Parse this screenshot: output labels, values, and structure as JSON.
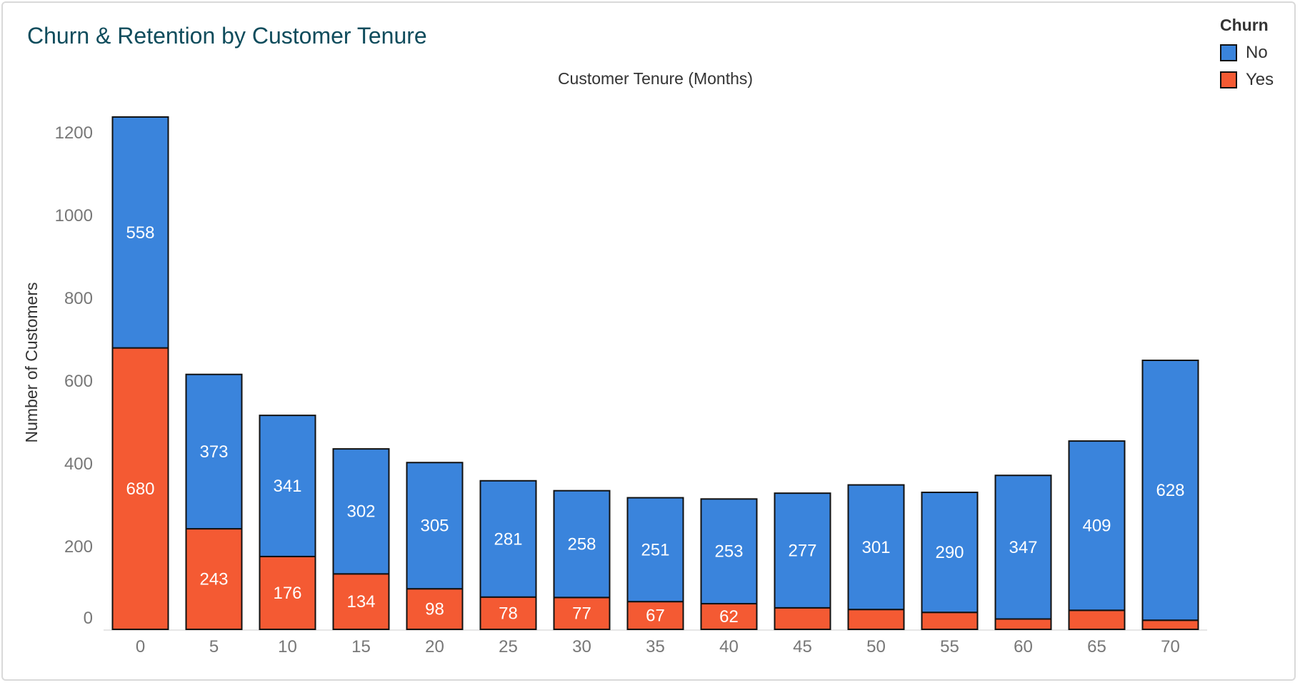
{
  "header": {
    "title": "Churn & Retention by Customer Tenure"
  },
  "legend": {
    "title": "Churn",
    "items": [
      {
        "label": "No",
        "color": "#3a84dc"
      },
      {
        "label": "Yes",
        "color": "#f45a33"
      }
    ]
  },
  "chart_data": {
    "type": "bar",
    "stacked": true,
    "title": "Churn & Retention by Customer Tenure",
    "xlabel": "Customer Tenure (Months)",
    "ylabel": "Number of Customers",
    "categories": [
      "0",
      "5",
      "10",
      "15",
      "20",
      "25",
      "30",
      "35",
      "40",
      "45",
      "50",
      "55",
      "60",
      "65",
      "70"
    ],
    "series": [
      {
        "name": "Yes",
        "color": "#f45a33",
        "values": [
          680,
          243,
          176,
          134,
          98,
          78,
          77,
          67,
          62,
          52,
          48,
          41,
          25,
          46,
          22
        ],
        "labels": [
          "680",
          "243",
          "176",
          "134",
          "98",
          "78",
          "77",
          "67",
          "62",
          "",
          "",
          "",
          "",
          "",
          ""
        ]
      },
      {
        "name": "No",
        "color": "#3a84dc",
        "values": [
          558,
          373,
          341,
          302,
          305,
          281,
          258,
          251,
          253,
          277,
          301,
          290,
          347,
          409,
          628
        ],
        "labels": [
          "558",
          "373",
          "341",
          "302",
          "305",
          "281",
          "258",
          "251",
          "253",
          "277",
          "301",
          "290",
          "347",
          "409",
          "628"
        ]
      }
    ],
    "yticks": [
      0,
      200,
      400,
      600,
      800,
      1000,
      1200
    ],
    "ylim": [
      0,
      1240
    ],
    "grid": false,
    "legend_position": "top-right"
  }
}
